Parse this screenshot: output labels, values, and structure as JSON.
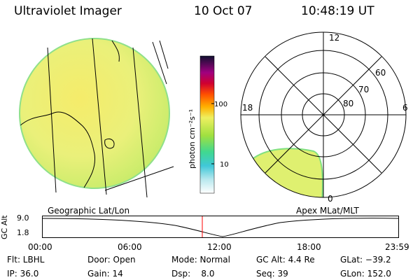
{
  "header": {
    "instrument": "Ultraviolet Imager",
    "date": "10 Oct 07",
    "time": "10:48:19 UT"
  },
  "colorbar": {
    "label": "photon cm⁻²s⁻¹",
    "ticks": [
      "100",
      "10"
    ]
  },
  "left_panel": {
    "caption": "Geographic Lat/Lon"
  },
  "right_panel": {
    "caption": "Apex MLat/MLT",
    "mlt_labels": [
      "12",
      "18",
      "6",
      "0"
    ],
    "mlat_labels": [
      "60",
      "70",
      "80"
    ]
  },
  "timeline": {
    "ylabel": "GC Alt",
    "yticks": [
      "9.0",
      "1.8"
    ],
    "xticks": [
      "00:00",
      "06:00",
      "12:00",
      "18:00",
      "23:59"
    ],
    "marker_time": "10:48:19"
  },
  "footer": {
    "flt": "Flt: LBHL",
    "ip": "IP: 36.0",
    "door": "Door: Open",
    "gain": "Gain: 14",
    "mode": "Mode: Normal",
    "dsp": "Dsp:    8.0",
    "gc_alt": "GC Alt: 4.4 Re",
    "seq": "Seq: 39",
    "glat": "GLat: −39.2",
    "glon": "GLon: 152.0"
  }
}
